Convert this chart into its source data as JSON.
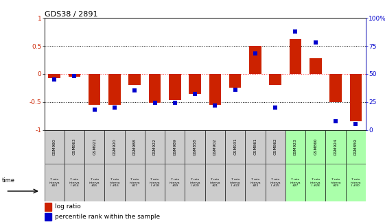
{
  "title": "GDS38 / 2891",
  "samples": [
    "GSM980",
    "GSM863",
    "GSM921",
    "GSM920",
    "GSM988",
    "GSM922",
    "GSM989",
    "GSM858",
    "GSM902",
    "GSM931",
    "GSM861",
    "GSM862",
    "GSM923",
    "GSM860",
    "GSM924",
    "GSM859"
  ],
  "time_labels": [
    "7 min\ninterva\n#13",
    "7 min\ninterva\nl #14",
    "7 min\ninterva\n#15",
    "7 min\ninterva\nl #16",
    "7 min\ninterva\n#17",
    "7 min\ninterva\nl #18",
    "7 min\ninterva\n#19",
    "7 min\ninterva\nl #20",
    "7 min\ninterva\n#21",
    "7 min\ninterva\nl #22",
    "7 min\ninterva\n#23",
    "7 min\ninterva\nl #25",
    "7 min\ninterva\n#27",
    "7 min\ninterva\nl #28",
    "7 min\ninterva\n#29",
    "7 min\ninterva\nl #30"
  ],
  "log_ratio": [
    -0.08,
    -0.05,
    -0.55,
    -0.55,
    -0.2,
    -0.52,
    -0.47,
    -0.35,
    -0.55,
    -0.25,
    0.5,
    -0.2,
    0.62,
    0.28,
    -0.5,
    -0.85
  ],
  "percentile": [
    45,
    48,
    18,
    20,
    35,
    24,
    24,
    32,
    22,
    36,
    68,
    20,
    88,
    78,
    8,
    5
  ],
  "bar_color": "#cc2200",
  "square_color": "#0000cc",
  "bg_color": "#ffffff",
  "plot_bg": "#ffffff",
  "ylim_left": [
    -1,
    1
  ],
  "ylim_right": [
    0,
    100
  ],
  "yticks_left": [
    -1,
    -0.5,
    0,
    0.5,
    1
  ],
  "yticks_right": [
    0,
    25,
    50,
    75,
    100
  ],
  "ytick_labels_left": [
    "-1",
    "-0.5",
    "0",
    "0.5",
    "1"
  ],
  "ytick_labels_right": [
    "0",
    "25",
    "50",
    "75",
    "100%"
  ],
  "bar_width": 0.6,
  "legend_items": [
    "log ratio",
    "percentile rank within the sample"
  ],
  "time_label": "time",
  "highlight_indices": [
    12,
    13,
    14,
    15
  ],
  "highlight_color": "#aaffaa",
  "normal_color": "#cccccc"
}
